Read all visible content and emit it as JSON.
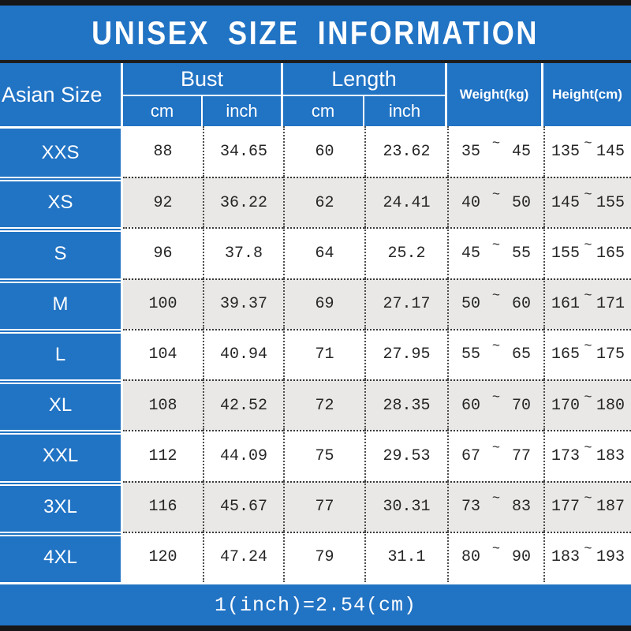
{
  "title": "UNISEX SIZE INFORMATION",
  "header": {
    "size_column": "Asian Size",
    "bust": {
      "label": "Bust",
      "cm": "cm",
      "inch": "inch"
    },
    "length": {
      "label": "Length",
      "cm": "cm",
      "inch": "inch"
    },
    "weight": "Weight(kg)",
    "height": "Height(cm)"
  },
  "tilde": "~",
  "footer_note": "1(inch)=2.54(cm)",
  "colors": {
    "blue": "#2173c4",
    "alt_row": "#e9e8e6",
    "edge_bar": "#161616",
    "number_text": "#262626"
  },
  "chart_data": {
    "type": "table",
    "title": "UNISEX SIZE INFORMATION",
    "columns": [
      "Asian Size",
      "Bust cm",
      "Bust inch",
      "Length cm",
      "Length inch",
      "Weight(kg) min",
      "Weight(kg) max",
      "Height(cm) min",
      "Height(cm) max"
    ],
    "rows": [
      [
        "XXS",
        "88",
        "34.65",
        "60",
        "23.62",
        "35",
        "45",
        "135",
        "145"
      ],
      [
        "XS",
        "92",
        "36.22",
        "62",
        "24.41",
        "40",
        "50",
        "145",
        "155"
      ],
      [
        "S",
        "96",
        "37.8",
        "64",
        "25.2",
        "45",
        "55",
        "155",
        "165"
      ],
      [
        "M",
        "100",
        "39.37",
        "69",
        "27.17",
        "50",
        "60",
        "161",
        "171"
      ],
      [
        "L",
        "104",
        "40.94",
        "71",
        "27.95",
        "55",
        "65",
        "165",
        "175"
      ],
      [
        "XL",
        "108",
        "42.52",
        "72",
        "28.35",
        "60",
        "70",
        "170",
        "180"
      ],
      [
        "XXL",
        "112",
        "44.09",
        "75",
        "29.53",
        "67",
        "77",
        "173",
        "183"
      ],
      [
        "3XL",
        "116",
        "45.67",
        "77",
        "30.31",
        "73",
        "83",
        "177",
        "187"
      ],
      [
        "4XL",
        "120",
        "47.24",
        "79",
        "31.1",
        "80",
        "90",
        "183",
        "193"
      ]
    ],
    "footnote": "1(inch)=2.54(cm)"
  }
}
